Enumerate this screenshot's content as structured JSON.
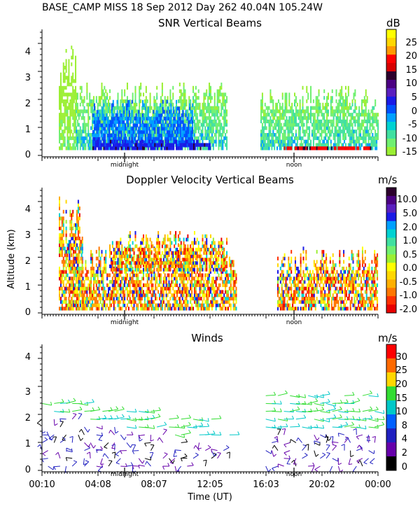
{
  "header": {
    "title": "BASE_CAMP MISS  18 Sep 2012 Day 262 40.04N 105.24W"
  },
  "chart_data": [
    {
      "type": "heatmap",
      "title": "SNR Vertical Beams",
      "ylabel": "",
      "xlabel": "",
      "ylim": [
        0,
        4.5
      ],
      "yticks": [
        "0",
        "1",
        "2",
        "3",
        "4"
      ],
      "xmarks": [
        "midnight",
        "noon"
      ],
      "colorbar": {
        "unit": "dB",
        "labels": [
          "25",
          "20",
          "15",
          "10",
          "5",
          "0",
          "-5",
          "-10",
          "-15"
        ],
        "colors": [
          "#ffff00",
          "#ffd700",
          "#ff9900",
          "#ff0000",
          "#d80000",
          "#2c002c",
          "#4b0082",
          "#5a1fbf",
          "#1a1ae6",
          "#0050ff",
          "#00a0ff",
          "#00d2d2",
          "#40e0a0",
          "#70f070",
          "#9bef33"
        ]
      },
      "regions": [
        {
          "t": [
            0.05,
            0.1
          ],
          "alt": [
            0.2,
            4.2
          ],
          "snr": -12
        },
        {
          "t": [
            0.1,
            0.55
          ],
          "alt": [
            0.2,
            2.6
          ],
          "snr": -8
        },
        {
          "t": [
            0.15,
            0.45
          ],
          "alt": [
            0.3,
            2.0
          ],
          "snr": -2
        },
        {
          "t": [
            0.15,
            0.5
          ],
          "alt": [
            0.2,
            0.5
          ],
          "snr": 3
        },
        {
          "t": [
            0.65,
            1.0
          ],
          "alt": [
            0.2,
            2.5
          ],
          "snr": -8
        },
        {
          "t": [
            0.72,
            0.98
          ],
          "alt": [
            0.2,
            0.3
          ],
          "snr": 12
        }
      ]
    },
    {
      "type": "heatmap",
      "title": "Doppler Velocity Vertical Beams",
      "ylabel": "Altitude (km)",
      "xlabel": "",
      "ylim": [
        0,
        4.5
      ],
      "yticks": [
        "0",
        "1",
        "2",
        "3",
        "4"
      ],
      "xmarks": [
        "midnight",
        "noon"
      ],
      "colorbar": {
        "unit": "m/s",
        "labels": [
          "10.0",
          "5.0",
          "2.0",
          "1.0",
          "0.5",
          "0.0",
          "-0.5",
          "-1.0",
          "-2.0"
        ],
        "colors": [
          "#2c002c",
          "#4b0082",
          "#5a1fbf",
          "#1a1ae6",
          "#00a0ff",
          "#00d2d2",
          "#40e0a0",
          "#70f070",
          "#9bef33",
          "#ffff00",
          "#ffd700",
          "#ffb000",
          "#ff7700",
          "#ff3000",
          "#e80000"
        ]
      },
      "regions": [
        {
          "t": [
            0.05,
            0.12
          ],
          "alt": [
            0.1,
            4.2
          ],
          "vel": 0.3
        },
        {
          "t": [
            0.08,
            0.58
          ],
          "alt": [
            0.1,
            2.4
          ],
          "vel": -0.6
        },
        {
          "t": [
            0.7,
            1.0
          ],
          "alt": [
            0.1,
            2.3
          ],
          "vel": -0.7
        },
        {
          "t": [
            0.2,
            0.55
          ],
          "alt": [
            1.5,
            2.9
          ],
          "vel": 0.8
        }
      ]
    },
    {
      "type": "scatter",
      "title": "Winds",
      "ylabel": "",
      "xlabel": "Time (UT)",
      "ylim": [
        0,
        4.5
      ],
      "yticks": [
        "0",
        "1",
        "2",
        "3",
        "4"
      ],
      "xmarks": [
        "midnight",
        "noon"
      ],
      "xticks": [
        "00:10",
        "04:08",
        "08:07",
        "12:05",
        "16:03",
        "20:02",
        "00:00"
      ],
      "colorbar": {
        "unit": "m/s",
        "labels": [
          "30",
          "25",
          "20",
          "15",
          "10",
          "8",
          "4",
          "2",
          "0"
        ],
        "colors": [
          "#ff0000",
          "#ff6a00",
          "#ffd700",
          "#33dd33",
          "#00c8c8",
          "#0060ff",
          "#2020c0",
          "#6600aa",
          "#000000"
        ]
      },
      "series_desc": "wind barbs, speed color-coded by altitude: low levels 2-8 m/s, upper levels 10-20 m/s"
    }
  ]
}
